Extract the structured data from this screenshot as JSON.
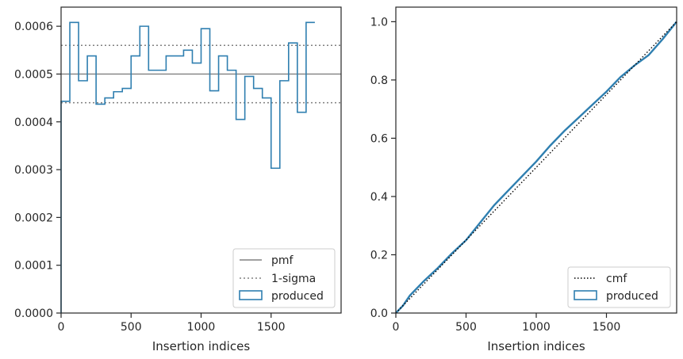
{
  "chart_data": [
    {
      "type": "step",
      "xlabel": "Insertion indices",
      "ylabel": "",
      "xlim": [
        0,
        2000
      ],
      "ylim": [
        0,
        0.00064
      ],
      "x_ticks": [
        0,
        500,
        1000,
        1500
      ],
      "y_ticks": [
        "0.0000",
        "0.0001",
        "0.0002",
        "0.0003",
        "0.0004",
        "0.0005",
        "0.0006"
      ],
      "y_tick_values": [
        0,
        0.0001,
        0.0002,
        0.0003,
        0.0004,
        0.0005,
        0.0006
      ],
      "bin_width": 62.5,
      "produced": [
        0.000443,
        0.000608,
        0.000486,
        0.000538,
        0.000437,
        0.00045,
        0.000463,
        0.00047,
        0.000538,
        0.0006,
        0.000508,
        0.000508,
        0.000538,
        0.000538,
        0.00055,
        0.000523,
        0.000595,
        0.000465,
        0.000538,
        0.000508,
        0.000405,
        0.000495,
        0.00047,
        0.00045,
        0.000303,
        0.000486,
        0.000565,
        0.00042,
        0.000608
      ],
      "pmf": 0.0005,
      "sigma_upper": 0.00056,
      "sigma_lower": 0.00044,
      "legend": [
        "pmf",
        "1-sigma",
        "produced"
      ],
      "legend_position": "lower-right",
      "colors": {
        "produced": "#2f7fb0",
        "pmf": "#808080",
        "sigma": "#808080"
      }
    },
    {
      "type": "line",
      "xlabel": "Insertion indices",
      "ylabel": "",
      "xlim": [
        0,
        2000
      ],
      "ylim": [
        0,
        1.05
      ],
      "x_ticks": [
        0,
        500,
        1000,
        1500
      ],
      "y_ticks": [
        "0.0",
        "0.2",
        "0.4",
        "0.6",
        "0.8",
        "1.0"
      ],
      "y_tick_values": [
        0,
        0.2,
        0.4,
        0.6,
        0.8,
        1.0
      ],
      "cmf": {
        "x": [
          0,
          2000
        ],
        "y": [
          0,
          1.0
        ]
      },
      "produced": {
        "x": [
          0,
          50,
          100,
          150,
          200,
          300,
          400,
          500,
          600,
          700,
          800,
          900,
          1000,
          1100,
          1200,
          1300,
          1400,
          1500,
          1600,
          1700,
          1800,
          1900,
          2000
        ],
        "y": [
          0,
          0.025,
          0.06,
          0.085,
          0.11,
          0.155,
          0.205,
          0.25,
          0.31,
          0.37,
          0.42,
          0.47,
          0.52,
          0.575,
          0.625,
          0.67,
          0.715,
          0.76,
          0.81,
          0.85,
          0.885,
          0.94,
          1.0
        ]
      },
      "legend": [
        "cmf",
        "produced"
      ],
      "legend_position": "lower-right",
      "colors": {
        "produced": "#2f7fb0",
        "cmf": "#000000"
      }
    }
  ]
}
